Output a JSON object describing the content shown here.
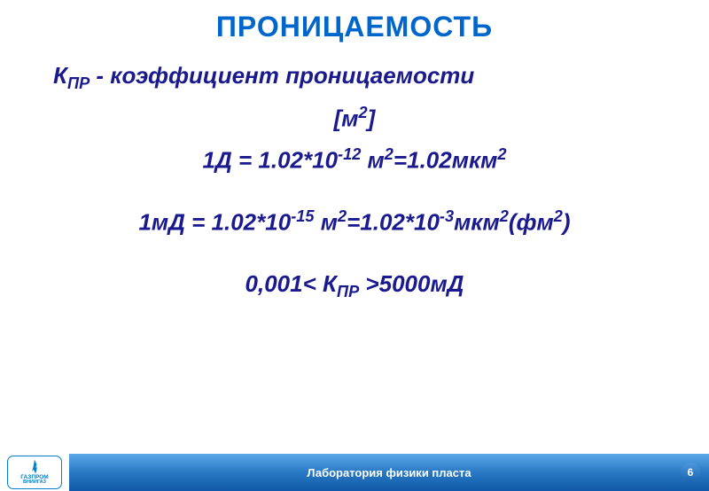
{
  "title": "ПРОНИЦАЕМОСТЬ",
  "content": {
    "line1_prefix": "К",
    "line1_sub": "ПР",
    "line1_suffix": " - коэффициент проницаемости",
    "line2_prefix": "[м",
    "line2_sup": "2",
    "line2_suffix": "]",
    "line3_a": "1Д = 1.02*10",
    "line3_sup1": "-12",
    "line3_b": " м",
    "line3_sup2": "2",
    "line3_c": "=1.02мкм",
    "line3_sup3": "2",
    "line4_a": "1мД = 1.02*10",
    "line4_sup1": "-15",
    "line4_b": " м",
    "line4_sup2": "2",
    "line4_c": "=1.02*10",
    "line4_sup3": "-3",
    "line4_d": "мкм",
    "line4_sup4": "2",
    "line4_e": "(фм",
    "line4_sup5": "2",
    "line4_f": ")",
    "line5_a": "0,001< К",
    "line5_sub": "ПР",
    "line5_b": " >5000мД"
  },
  "footer": {
    "logo_main": "ГАЗПРОМ",
    "logo_sub": "ВНИИГАЗ",
    "text": "Лаборатория физики пласта"
  },
  "page_number": "6",
  "colors": {
    "title_color": "#0066cc",
    "text_color": "#1a1a8e",
    "footer_gradient_top": "#5ba8e8",
    "footer_gradient_mid": "#2978c4",
    "footer_gradient_bottom": "#0f5aa8",
    "logo_color": "#0080cc",
    "background": "#ffffff"
  }
}
